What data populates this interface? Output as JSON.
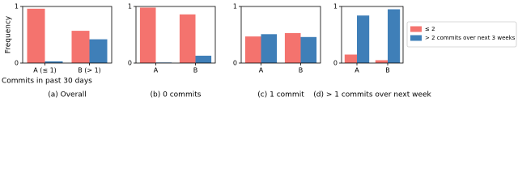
{
  "chart_data": [
    {
      "type": "bar",
      "caption": "(a) Overall",
      "ylabel": "Frequency",
      "xlabel": "Commits in past 30 days",
      "categories": [
        "A (≤ 1)",
        "B (> 1)"
      ],
      "ylim": [
        0,
        1
      ],
      "yticks": [
        0,
        1
      ],
      "series": [
        {
          "color": "#f4736e",
          "values": [
            0.96,
            0.57
          ]
        },
        {
          "color": "#3f7fb8",
          "values": [
            0.03,
            0.42
          ]
        }
      ]
    },
    {
      "type": "bar",
      "caption": "(b) 0 commits",
      "categories": [
        "A",
        "B"
      ],
      "ylim": [
        0,
        1
      ],
      "yticks": [
        0,
        1
      ],
      "series": [
        {
          "color": "#f4736e",
          "values": [
            0.98,
            0.86
          ]
        },
        {
          "color": "#3f7fb8",
          "values": [
            0.01,
            0.13
          ]
        }
      ]
    },
    {
      "type": "bar",
      "caption": "(c) 1 commit",
      "categories": [
        "A",
        "B"
      ],
      "ylim": [
        0,
        1
      ],
      "yticks": [
        0,
        1
      ],
      "series": [
        {
          "color": "#f4736e",
          "values": [
            0.47,
            0.53
          ]
        },
        {
          "color": "#3f7fb8",
          "values": [
            0.51,
            0.46
          ]
        }
      ]
    },
    {
      "type": "bar",
      "caption": "(d) > 1 commits over next week",
      "categories": [
        "A",
        "B"
      ],
      "ylim": [
        0,
        1
      ],
      "yticks": [
        0,
        1
      ],
      "series": [
        {
          "name": "≤ 2",
          "color": "#f4736e",
          "values": [
            0.15,
            0.05
          ]
        },
        {
          "name": "> 2 commits over next 3 weeks",
          "color": "#3f7fb8",
          "values": [
            0.84,
            0.95
          ]
        }
      ]
    }
  ]
}
